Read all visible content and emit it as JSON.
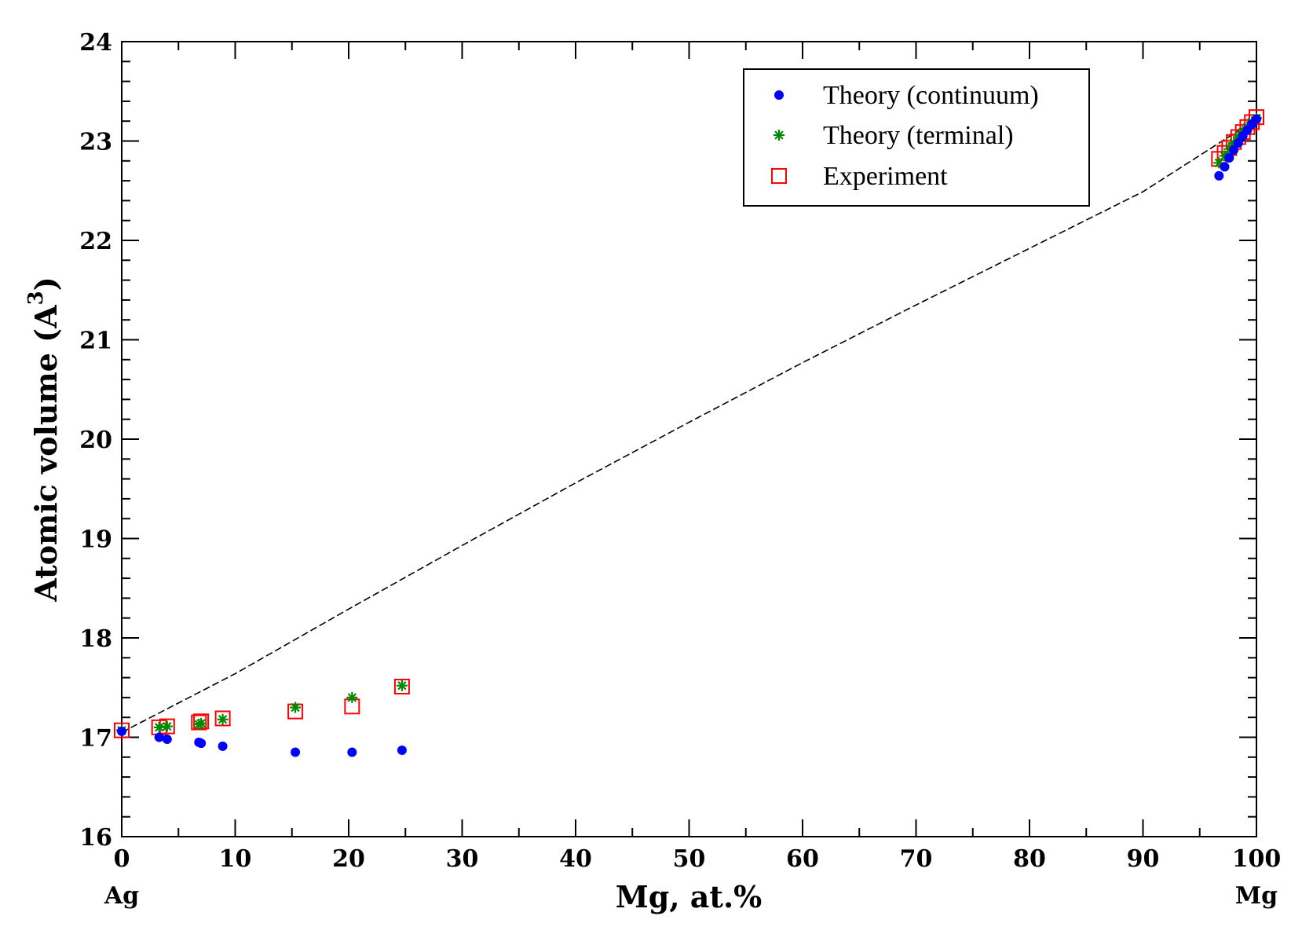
{
  "chart_data": {
    "type": "scatter",
    "title": "",
    "xlabel": "Mg, at.%",
    "ylabel_main": "Atomic volume (A",
    "ylabel_sup": "3",
    "ylabel_close": ")",
    "xlim": [
      0,
      100
    ],
    "ylim": [
      16,
      24
    ],
    "x_ticks": [
      0,
      10,
      20,
      30,
      40,
      50,
      60,
      70,
      80,
      90,
      100
    ],
    "x_tick_labels": [
      "0",
      "10",
      "20",
      "30",
      "40",
      "50",
      "60",
      "70",
      "80",
      "90",
      "100"
    ],
    "y_ticks": [
      16,
      17,
      18,
      19,
      20,
      21,
      22,
      23,
      24
    ],
    "y_tick_labels": [
      "16",
      "17",
      "18",
      "19",
      "20",
      "21",
      "22",
      "23",
      "24"
    ],
    "x_end_labels": {
      "left": "Ag",
      "right": "Mg"
    },
    "grid": false,
    "legend_position": "top-right",
    "reference_line": {
      "style": "dashed",
      "x": [
        0,
        10,
        20,
        30,
        40,
        50,
        60,
        70,
        80,
        90,
        100
      ],
      "y": [
        17.05,
        17.64,
        18.29,
        18.93,
        19.56,
        20.17,
        20.77,
        21.35,
        21.92,
        22.49,
        23.22
      ]
    },
    "series": [
      {
        "name": "Theory (continuum)",
        "marker": "circle",
        "color": "#0000ff",
        "x": [
          0,
          3.3,
          4.0,
          6.8,
          7.0,
          8.9,
          15.3,
          20.3,
          24.7,
          96.7,
          97.2,
          97.6,
          98.0,
          98.4,
          98.8,
          99.2,
          99.6,
          100
        ],
        "y": [
          17.06,
          17.0,
          16.98,
          16.95,
          16.94,
          16.91,
          16.85,
          16.85,
          16.87,
          22.65,
          22.74,
          22.83,
          22.91,
          22.98,
          23.05,
          23.11,
          23.17,
          23.22
        ]
      },
      {
        "name": "Theory (terminal)",
        "marker": "star",
        "color": "#008800",
        "x": [
          0,
          3.3,
          4.0,
          6.8,
          7.0,
          8.9,
          15.3,
          20.3,
          24.7,
          96.7,
          97.2,
          97.6,
          98.0,
          98.4,
          98.8,
          99.2,
          99.6,
          100
        ],
        "y": [
          17.07,
          17.1,
          17.11,
          17.13,
          17.14,
          17.18,
          17.3,
          17.4,
          17.52,
          22.78,
          22.85,
          22.92,
          22.98,
          23.04,
          23.09,
          23.14,
          23.19,
          23.23
        ]
      },
      {
        "name": "Experiment",
        "marker": "square-open",
        "color": "#ff0000",
        "x": [
          0,
          3.3,
          4.0,
          6.8,
          7.0,
          8.9,
          15.3,
          20.3,
          24.7,
          96.7,
          97.2,
          97.6,
          98.0,
          98.4,
          98.8,
          99.2,
          99.6,
          100
        ],
        "y": [
          17.07,
          17.1,
          17.11,
          17.15,
          17.16,
          17.19,
          17.26,
          17.31,
          17.51,
          22.82,
          22.88,
          22.93,
          22.99,
          23.04,
          23.09,
          23.14,
          23.19,
          23.24
        ]
      }
    ]
  }
}
